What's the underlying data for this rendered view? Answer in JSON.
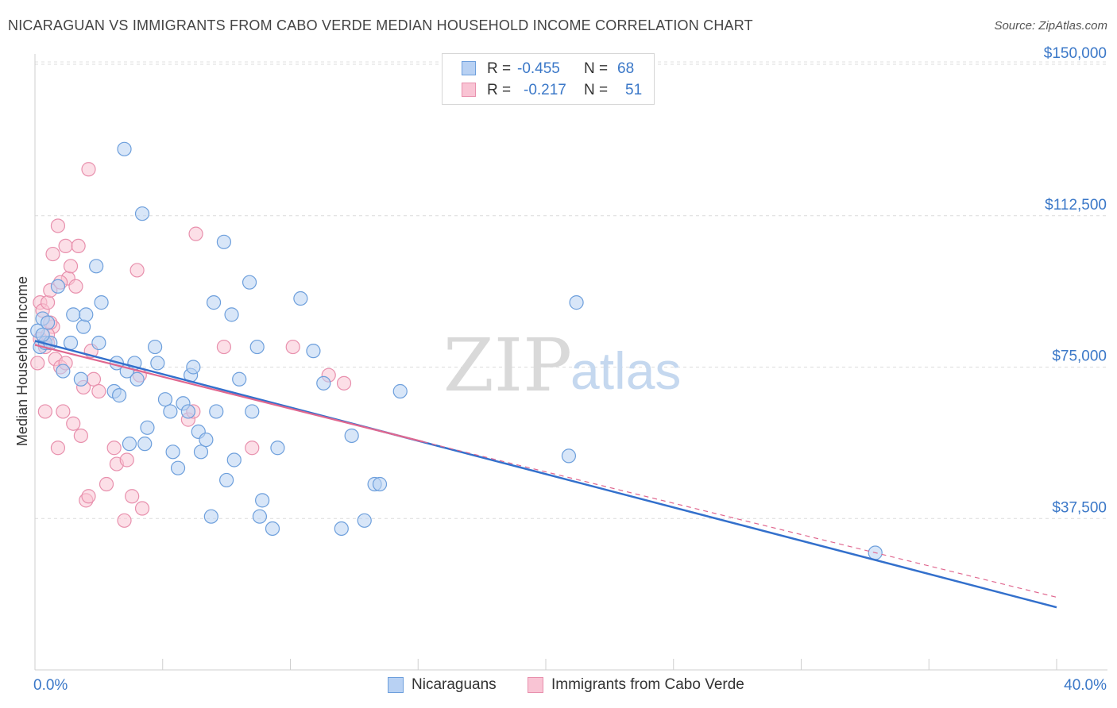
{
  "title": "NICARAGUAN VS IMMIGRANTS FROM CABO VERDE MEDIAN HOUSEHOLD INCOME CORRELATION CHART",
  "source": "Source: ZipAtlas.com",
  "watermark": {
    "zip": "ZIP",
    "atlas": "atlas"
  },
  "legend": {
    "r_label": "R =",
    "n_label": "N =",
    "rows": [
      {
        "r": "-0.455",
        "n": "68"
      },
      {
        "r": "-0.217",
        "n": "51"
      }
    ]
  },
  "colors": {
    "blue_fill": "#b8d1f3",
    "blue_stroke": "#6d9fdc",
    "blue_line": "#3370cc",
    "pink_fill": "#f9c4d4",
    "pink_stroke": "#e890ad",
    "pink_line": "#e0678f",
    "axis_label": "#3b78c8"
  },
  "chart_data": {
    "type": "scatter",
    "title": "NICARAGUAN VS IMMIGRANTS FROM CABO VERDE MEDIAN HOUSEHOLD INCOME CORRELATION CHART",
    "xlabel": "",
    "ylabel": "Median Household Income",
    "xlim": [
      0,
      40
    ],
    "ylim": [
      0,
      152000
    ],
    "x_tick_labels": [
      "0.0%",
      "40.0%"
    ],
    "y_ticks": [
      37500,
      75000,
      112500,
      150000
    ],
    "y_tick_labels": [
      "$37,500",
      "$75,000",
      "$112,500",
      "$150,000"
    ],
    "series": [
      {
        "name": "Nicaraguans",
        "color": "#6d9fdc",
        "points": [
          [
            0.1,
            84000
          ],
          [
            0.2,
            80000
          ],
          [
            0.3,
            87000
          ],
          [
            0.4,
            81000
          ],
          [
            0.5,
            86000
          ],
          [
            0.6,
            81000
          ],
          [
            0.9,
            95000
          ],
          [
            1.1,
            74000
          ],
          [
            1.4,
            81000
          ],
          [
            1.5,
            88000
          ],
          [
            1.8,
            72000
          ],
          [
            1.9,
            85000
          ],
          [
            2.0,
            88000
          ],
          [
            2.4,
            100000
          ],
          [
            2.5,
            81000
          ],
          [
            2.6,
            91000
          ],
          [
            3.1,
            69000
          ],
          [
            3.2,
            76000
          ],
          [
            3.3,
            68000
          ],
          [
            3.5,
            129000
          ],
          [
            3.6,
            74000
          ],
          [
            3.7,
            56000
          ],
          [
            3.9,
            76000
          ],
          [
            4.0,
            72000
          ],
          [
            4.2,
            113000
          ],
          [
            4.3,
            56000
          ],
          [
            4.4,
            60000
          ],
          [
            4.7,
            80000
          ],
          [
            4.8,
            76000
          ],
          [
            5.1,
            67000
          ],
          [
            5.3,
            64000
          ],
          [
            5.4,
            54000
          ],
          [
            5.6,
            50000
          ],
          [
            5.8,
            66000
          ],
          [
            6.0,
            64000
          ],
          [
            6.1,
            73000
          ],
          [
            6.2,
            75000
          ],
          [
            6.4,
            59000
          ],
          [
            6.5,
            54000
          ],
          [
            6.7,
            57000
          ],
          [
            6.9,
            38000
          ],
          [
            7.0,
            91000
          ],
          [
            7.1,
            64000
          ],
          [
            7.4,
            106000
          ],
          [
            7.5,
            47000
          ],
          [
            7.7,
            88000
          ],
          [
            7.8,
            52000
          ],
          [
            8.0,
            72000
          ],
          [
            8.4,
            96000
          ],
          [
            8.5,
            64000
          ],
          [
            8.7,
            80000
          ],
          [
            8.8,
            38000
          ],
          [
            8.9,
            42000
          ],
          [
            9.3,
            35000
          ],
          [
            9.5,
            55000
          ],
          [
            10.4,
            92000
          ],
          [
            10.9,
            79000
          ],
          [
            11.3,
            71000
          ],
          [
            12.0,
            35000
          ],
          [
            12.4,
            58000
          ],
          [
            12.9,
            37000
          ],
          [
            13.3,
            46000
          ],
          [
            13.5,
            46000
          ],
          [
            14.3,
            69000
          ],
          [
            20.9,
            53000
          ],
          [
            21.2,
            91000
          ],
          [
            32.9,
            29000
          ],
          [
            0.3,
            83000
          ]
        ]
      },
      {
        "name": "Immigrants from Cabo Verde",
        "color": "#e890ad",
        "points": [
          [
            0.1,
            76000
          ],
          [
            0.2,
            91000
          ],
          [
            0.3,
            89000
          ],
          [
            0.4,
            64000
          ],
          [
            0.5,
            81000
          ],
          [
            0.5,
            91000
          ],
          [
            0.6,
            94000
          ],
          [
            0.7,
            85000
          ],
          [
            0.7,
            103000
          ],
          [
            0.8,
            77000
          ],
          [
            0.9,
            110000
          ],
          [
            0.9,
            55000
          ],
          [
            1.0,
            75000
          ],
          [
            1.1,
            64000
          ],
          [
            1.2,
            105000
          ],
          [
            1.3,
            97000
          ],
          [
            1.4,
            100000
          ],
          [
            1.5,
            61000
          ],
          [
            1.6,
            95000
          ],
          [
            1.7,
            105000
          ],
          [
            1.8,
            58000
          ],
          [
            1.9,
            70000
          ],
          [
            2.0,
            42000
          ],
          [
            2.1,
            43000
          ],
          [
            2.1,
            124000
          ],
          [
            2.2,
            79000
          ],
          [
            2.3,
            72000
          ],
          [
            2.5,
            69000
          ],
          [
            2.8,
            46000
          ],
          [
            3.1,
            55000
          ],
          [
            3.2,
            51000
          ],
          [
            3.5,
            37000
          ],
          [
            3.6,
            52000
          ],
          [
            3.8,
            43000
          ],
          [
            4.0,
            99000
          ],
          [
            4.1,
            73000
          ],
          [
            4.2,
            40000
          ],
          [
            6.0,
            62000
          ],
          [
            6.2,
            64000
          ],
          [
            6.3,
            108000
          ],
          [
            7.4,
            80000
          ],
          [
            8.5,
            55000
          ],
          [
            10.1,
            80000
          ],
          [
            11.5,
            73000
          ],
          [
            12.1,
            71000
          ],
          [
            0.2,
            82000
          ],
          [
            0.4,
            80000
          ],
          [
            0.6,
            86000
          ],
          [
            1.2,
            76000
          ],
          [
            0.5,
            83000
          ],
          [
            1.0,
            96000
          ]
        ]
      }
    ],
    "trendlines": [
      {
        "series": "Nicaraguans",
        "x": [
          0,
          40
        ],
        "y": [
          81500,
          15500
        ],
        "style": "solid"
      },
      {
        "series": "Immigrants from Cabo Verde",
        "x": [
          0,
          15.2
        ],
        "y": [
          80500,
          56500
        ],
        "style": "solid"
      },
      {
        "series": "Immigrants from Cabo Verde",
        "x": [
          15.2,
          40
        ],
        "y": [
          56500,
          18000
        ],
        "style": "dashed"
      }
    ]
  },
  "bottom_legend": [
    "Nicaraguans",
    "Immigrants from Cabo Verde"
  ]
}
